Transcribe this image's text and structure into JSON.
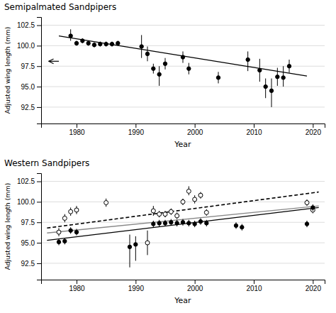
{
  "chart_data": [
    {
      "type": "scatter",
      "title": "Semipalmated Sandpipers",
      "xlabel": "Year",
      "ylabel": "Adjusted wing length (mm)",
      "xlim": [
        1974,
        2022
      ],
      "ylim": [
        90.5,
        103.5
      ],
      "xticks": [
        1980,
        1990,
        2000,
        2010,
        2020
      ],
      "yticks": [
        92.5,
        {
          "value": 95.0,
          "label": "95.0"
        },
        97.5,
        {
          "value": 100.0,
          "label": "100.0"
        },
        102.5
      ],
      "grid": true,
      "series": [
        {
          "type": "scatter",
          "marker": "filled",
          "color": "black",
          "x": [
            1979,
            1980,
            1981,
            1982,
            1983,
            1984,
            1985,
            1986,
            1987,
            1991,
            1992,
            1993,
            1994,
            1995,
            1998,
            1999,
            2004,
            2009,
            2011,
            2012,
            2013,
            2014,
            2015,
            2016
          ],
          "values": [
            101.2,
            100.3,
            100.6,
            100.3,
            100.1,
            100.2,
            100.2,
            100.2,
            100.3,
            99.9,
            99.0,
            97.2,
            96.5,
            97.8,
            98.6,
            97.2,
            96.1,
            98.3,
            97.0,
            95.0,
            94.5,
            96.2,
            96.1,
            97.5
          ],
          "error_low": [
            0.6,
            0.3,
            0.3,
            0.3,
            0.3,
            0.3,
            0.3,
            0.3,
            0.3,
            1.4,
            0.9,
            0.6,
            1.4,
            0.7,
            0.7,
            0.7,
            0.7,
            1.4,
            1.4,
            1.4,
            2.0,
            1.1,
            1.1,
            0.8
          ],
          "error_high": [
            0.8,
            0.3,
            0.3,
            0.3,
            0.3,
            0.3,
            0.3,
            0.3,
            0.3,
            1.4,
            0.9,
            0.6,
            1.0,
            0.7,
            0.7,
            0.7,
            0.7,
            1.0,
            1.4,
            1.0,
            1.5,
            1.1,
            1.4,
            0.8
          ]
        },
        {
          "type": "line",
          "line_style": "solid",
          "color": "black",
          "x": [
            1977,
            2019
          ],
          "values": [
            101.2,
            96.3
          ]
        }
      ],
      "annotations": [
        {
          "type": "arrow",
          "x_from": 1977.0,
          "x_to": 1975.3,
          "y": 98.1
        }
      ]
    },
    {
      "type": "scatter",
      "title": "Western Sandpipers",
      "xlabel": "Year",
      "ylabel": "Adjusted wing length (mm)",
      "xlim": [
        1974,
        2022
      ],
      "ylim": [
        90.5,
        103.5
      ],
      "xticks": [
        1980,
        1990,
        2000,
        2010,
        2020
      ],
      "yticks": [
        92.5,
        {
          "value": 95.0,
          "label": "95.0"
        },
        97.5,
        {
          "value": 100.0,
          "label": "100.0"
        },
        102.5
      ],
      "grid": true,
      "series": [
        {
          "type": "line",
          "line_style": "solid",
          "color": "#888888",
          "x": [
            1975,
            2021
          ],
          "values": [
            96.2,
            99.5
          ]
        },
        {
          "type": "line",
          "line_style": "dashed",
          "color": "black",
          "x": [
            1975,
            2021
          ],
          "values": [
            96.8,
            101.2
          ]
        },
        {
          "type": "line",
          "line_style": "solid",
          "color": "black",
          "x": [
            1975,
            2021
          ],
          "values": [
            95.3,
            99.3
          ]
        },
        {
          "type": "scatter",
          "marker": "open",
          "color": "black",
          "x": [
            1977,
            1978,
            1979,
            1980,
            1985,
            1992,
            1993,
            1994,
            1995,
            1996,
            1997,
            1998,
            1999,
            2000,
            2001,
            2002,
            2019,
            2020
          ],
          "values": [
            96.3,
            98.0,
            98.8,
            99.0,
            99.9,
            95.0,
            98.9,
            98.5,
            98.5,
            98.8,
            98.3,
            100.0,
            101.3,
            100.3,
            100.8,
            98.7,
            99.9,
            99.0
          ],
          "error_low": [
            0.5,
            0.5,
            0.5,
            0.5,
            0.5,
            1.5,
            0.6,
            0.4,
            0.4,
            0.4,
            0.4,
            0.4,
            0.5,
            0.5,
            0.4,
            0.4,
            0.4,
            0.4
          ],
          "error_high": [
            0.5,
            0.5,
            0.5,
            0.5,
            0.5,
            1.5,
            0.6,
            0.4,
            0.4,
            0.4,
            0.4,
            0.4,
            0.6,
            0.5,
            0.4,
            0.4,
            0.4,
            0.4
          ]
        },
        {
          "type": "scatter",
          "marker": "filled",
          "color": "black",
          "x": [
            1977,
            1978,
            1979,
            1980,
            1989,
            1990,
            1993,
            1994,
            1995,
            1996,
            1997,
            1998,
            1999,
            2000,
            2001,
            2002,
            2007,
            2008,
            2019,
            2020
          ],
          "values": [
            95.1,
            95.2,
            96.5,
            96.3,
            94.5,
            94.8,
            97.3,
            97.4,
            97.4,
            97.5,
            97.4,
            97.5,
            97.4,
            97.3,
            97.6,
            97.4,
            97.1,
            96.9,
            97.3,
            99.3
          ],
          "error_low": [
            0.4,
            0.4,
            0.4,
            0.4,
            2.5,
            2.0,
            0.4,
            0.4,
            0.4,
            0.4,
            0.4,
            0.4,
            0.4,
            0.4,
            0.4,
            0.4,
            0.4,
            0.4,
            0.4,
            0.4
          ],
          "error_high": [
            0.4,
            0.4,
            0.4,
            0.4,
            1.5,
            1.0,
            0.4,
            0.4,
            0.4,
            0.4,
            0.4,
            0.4,
            0.4,
            0.4,
            0.4,
            0.4,
            0.4,
            0.4,
            0.4,
            0.4
          ]
        }
      ]
    }
  ]
}
